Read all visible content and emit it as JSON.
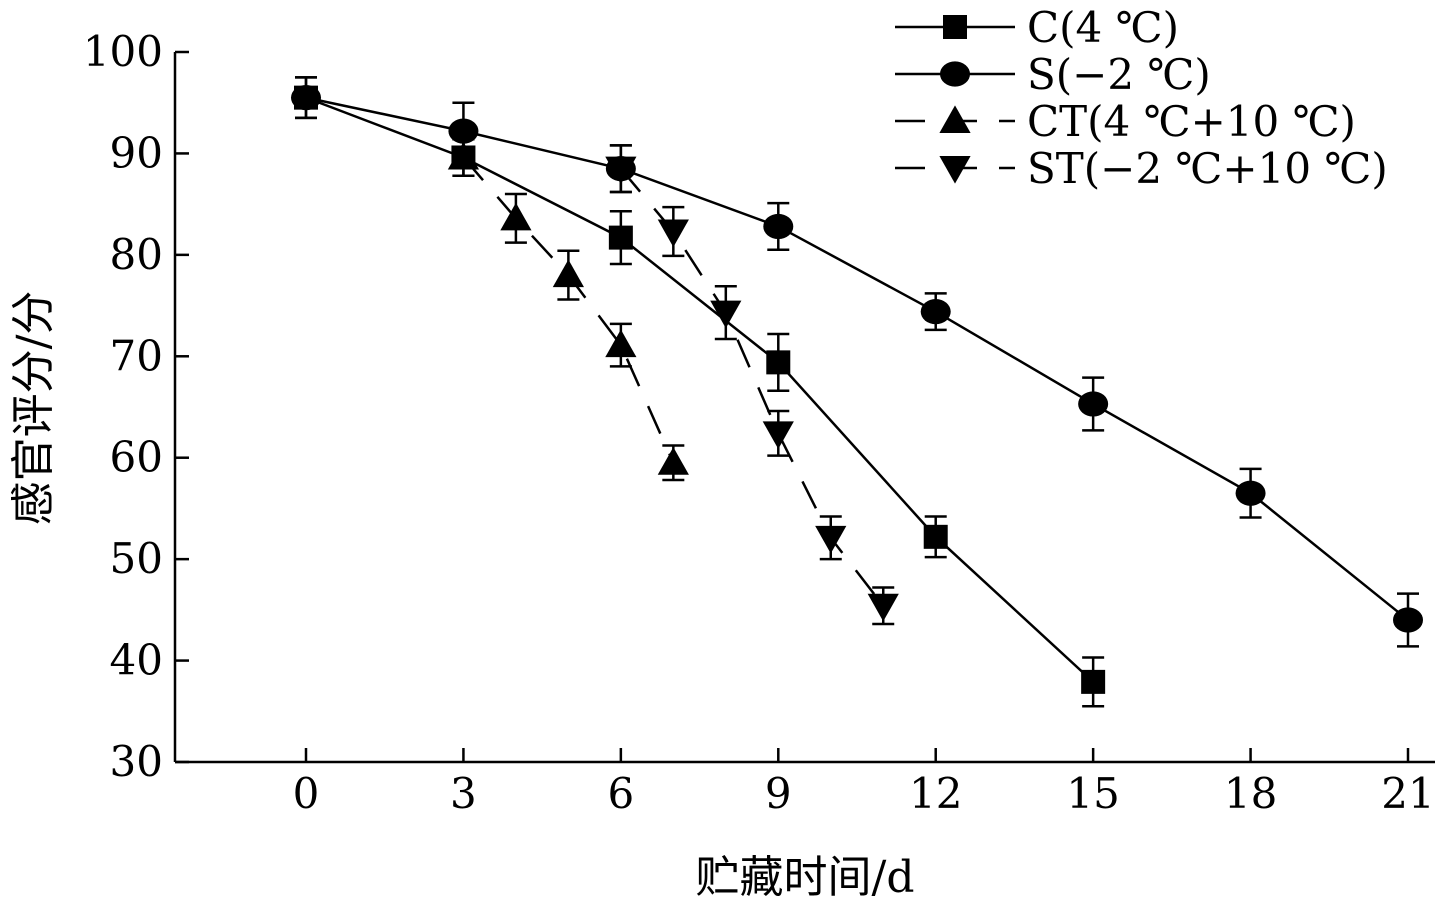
{
  "chart_data": {
    "type": "line",
    "title": "",
    "xlabel": "贮藏时间/d",
    "ylabel": "感官评分/分",
    "xlim": [
      -2.5,
      21.5
    ],
    "ylim": [
      30,
      100
    ],
    "xticks": [
      0,
      3,
      6,
      9,
      12,
      15,
      18,
      21
    ],
    "yticks": [
      30,
      40,
      50,
      60,
      70,
      80,
      90,
      100
    ],
    "grid": false,
    "legend_position": "top-right",
    "series": [
      {
        "name": "C(4 ℃)",
        "marker": "square",
        "dash": false,
        "x": [
          0,
          3,
          6,
          9,
          12,
          15
        ],
        "y": [
          95.5,
          89.6,
          81.7,
          69.4,
          52.2,
          37.9
        ],
        "err": [
          2,
          1.8,
          2.6,
          2.8,
          2,
          2.4
        ]
      },
      {
        "name": "S(−2 ℃)",
        "marker": "circle",
        "dash": false,
        "x": [
          0,
          3,
          6,
          9,
          12,
          15,
          18,
          21
        ],
        "y": [
          95.5,
          92.2,
          88.5,
          82.8,
          74.4,
          65.3,
          56.5,
          44.0
        ],
        "err": [
          2,
          2.8,
          2.3,
          2.3,
          1.8,
          2.6,
          2.4,
          2.6
        ]
      },
      {
        "name": "CT(4 ℃+10 ℃)",
        "marker": "triangle-up",
        "dash": true,
        "x": [
          3,
          4,
          5,
          6,
          7
        ],
        "y": [
          89.6,
          83.6,
          78.0,
          71.1,
          59.5
        ],
        "err": [
          1.8,
          2.4,
          2.4,
          2.1,
          1.7
        ]
      },
      {
        "name": "ST(−2 ℃+10 ℃)",
        "marker": "triangle-down",
        "dash": true,
        "x": [
          6,
          7,
          8,
          9,
          10,
          11
        ],
        "y": [
          88.5,
          82.3,
          74.3,
          62.4,
          52.1,
          45.4
        ],
        "err": [
          2.3,
          2.4,
          2.6,
          2.2,
          2.1,
          1.8
        ]
      }
    ]
  }
}
